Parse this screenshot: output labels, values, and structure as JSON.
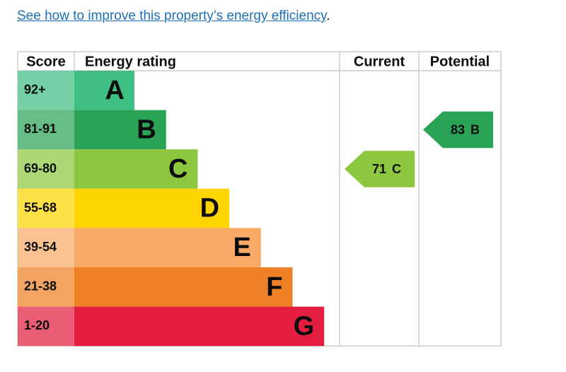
{
  "link": {
    "text": "See how to improve this property’s energy efficiency",
    "suffix": "."
  },
  "table": {
    "headers": [
      "Score",
      "Energy rating",
      "Current",
      "Potential"
    ],
    "bands": [
      {
        "score": "92+",
        "letter": "A",
        "color": "#3fbf82"
      },
      {
        "score": "81-91",
        "letter": "B",
        "color": "#2aa357"
      },
      {
        "score": "69-80",
        "letter": "C",
        "color": "#8dc63f"
      },
      {
        "score": "55-68",
        "letter": "D",
        "color": "#fdd400"
      },
      {
        "score": "39-54",
        "letter": "E",
        "color": "#f8aa66"
      },
      {
        "score": "21-38",
        "letter": "F",
        "color": "#ef8026"
      },
      {
        "score": "1-20",
        "letter": "G",
        "color": "#e31d3f"
      }
    ],
    "current": {
      "score": 71,
      "band": "C"
    },
    "potential": {
      "score": 83,
      "band": "B"
    }
  }
}
